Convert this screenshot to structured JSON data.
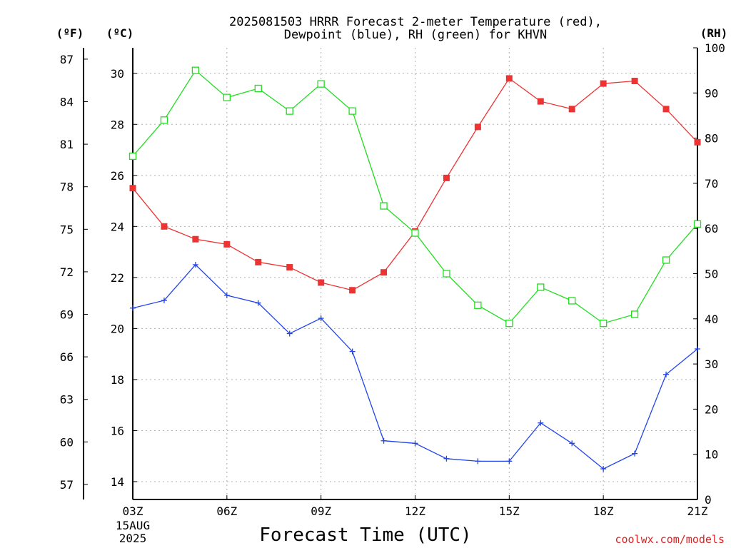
{
  "chart_data": {
    "type": "line",
    "title_lines": [
      "2025081503 HRRR Forecast 2-meter Temperature (red),",
      "Dewpoint (blue), RH (green) for KHVN"
    ],
    "xlabel": "Forecast Time (UTC)",
    "credit": "coolwx.com/models",
    "unit_labels": {
      "fahrenheit": "(ºF)",
      "celsius": "(ºC)",
      "rh": "(RH)"
    },
    "x_hours": [
      3,
      4,
      5,
      6,
      7,
      8,
      9,
      10,
      11,
      12,
      13,
      14,
      15,
      16,
      17,
      18,
      19,
      20,
      21
    ],
    "x_ticks": [
      {
        "hour": 3,
        "label": "03Z",
        "sub": [
          "15AUG",
          "2025"
        ]
      },
      {
        "hour": 6,
        "label": "06Z"
      },
      {
        "hour": 9,
        "label": "09Z"
      },
      {
        "hour": 12,
        "label": "12Z"
      },
      {
        "hour": 15,
        "label": "15Z"
      },
      {
        "hour": 18,
        "label": "18Z"
      },
      {
        "hour": 21,
        "label": "21Z"
      }
    ],
    "celsius_range": [
      13.3,
      31.0
    ],
    "celsius_ticks": [
      14,
      16,
      18,
      20,
      22,
      24,
      26,
      28,
      30
    ],
    "fahrenheit_ticks": [
      57,
      60,
      63,
      66,
      69,
      72,
      75,
      78,
      81,
      84,
      87
    ],
    "rh_range": [
      0,
      100
    ],
    "rh_ticks": [
      0,
      10,
      20,
      30,
      40,
      50,
      60,
      70,
      80,
      90,
      100
    ],
    "grid": true,
    "series": [
      {
        "key": "temperature",
        "axis": "celsius",
        "color": "#ee3333",
        "marker": "filled-square",
        "values": [
          25.5,
          24.0,
          23.5,
          23.3,
          22.6,
          22.4,
          21.8,
          21.5,
          22.2,
          23.8,
          25.9,
          27.9,
          29.8,
          28.9,
          28.6,
          29.6,
          29.7,
          28.6,
          27.3
        ]
      },
      {
        "key": "dewpoint",
        "axis": "celsius",
        "color": "#2244ee",
        "marker": "plus",
        "values": [
          20.8,
          21.1,
          22.5,
          21.3,
          21.0,
          19.8,
          20.4,
          19.1,
          15.6,
          15.5,
          14.9,
          14.8,
          14.8,
          16.3,
          15.5,
          14.5,
          15.1,
          18.2,
          19.2
        ]
      },
      {
        "key": "rh",
        "axis": "rh",
        "color": "#22dd22",
        "marker": "open-square",
        "values": [
          76,
          84,
          95,
          89,
          91,
          86,
          92,
          86,
          65,
          59,
          50,
          43,
          39,
          47,
          44,
          39,
          41,
          53,
          61
        ]
      }
    ]
  }
}
